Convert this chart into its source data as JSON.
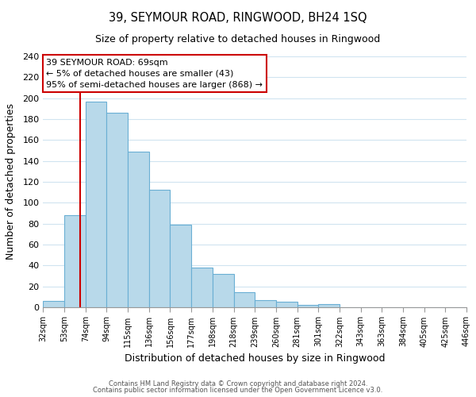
{
  "title": "39, SEYMOUR ROAD, RINGWOOD, BH24 1SQ",
  "subtitle": "Size of property relative to detached houses in Ringwood",
  "xlabel": "Distribution of detached houses by size in Ringwood",
  "ylabel": "Number of detached properties",
  "footer_lines": [
    "Contains HM Land Registry data © Crown copyright and database right 2024.",
    "Contains public sector information licensed under the Open Government Licence v3.0."
  ],
  "bin_labels": [
    "32sqm",
    "53sqm",
    "74sqm",
    "94sqm",
    "115sqm",
    "136sqm",
    "156sqm",
    "177sqm",
    "198sqm",
    "218sqm",
    "239sqm",
    "260sqm",
    "281sqm",
    "301sqm",
    "322sqm",
    "343sqm",
    "363sqm",
    "384sqm",
    "405sqm",
    "425sqm",
    "446sqm"
  ],
  "bar_heights": [
    6,
    88,
    197,
    186,
    149,
    112,
    79,
    38,
    32,
    14,
    7,
    5,
    2,
    3,
    0,
    0,
    0,
    0,
    0,
    0,
    1
  ],
  "bar_color": "#b8d9ea",
  "bar_edge_color": "#6aafd4",
  "grid_color": "#d0e4f0",
  "annotation_line1": "39 SEYMOUR ROAD: 69sqm",
  "annotation_line2": "← 5% of detached houses are smaller (43)",
  "annotation_line3": "95% of semi-detached houses are larger (868) →",
  "marker_color": "#cc0000",
  "annotation_box_edge": "#cc0000",
  "ylim": [
    0,
    240
  ],
  "yticks": [
    0,
    20,
    40,
    60,
    80,
    100,
    120,
    140,
    160,
    180,
    200,
    220,
    240
  ],
  "bin_sqm": [
    32,
    53,
    74,
    94,
    115,
    136,
    156,
    177,
    198,
    218,
    239,
    260,
    281,
    301,
    322,
    343,
    363,
    384,
    405,
    425,
    446
  ],
  "marker_sqm": 69
}
